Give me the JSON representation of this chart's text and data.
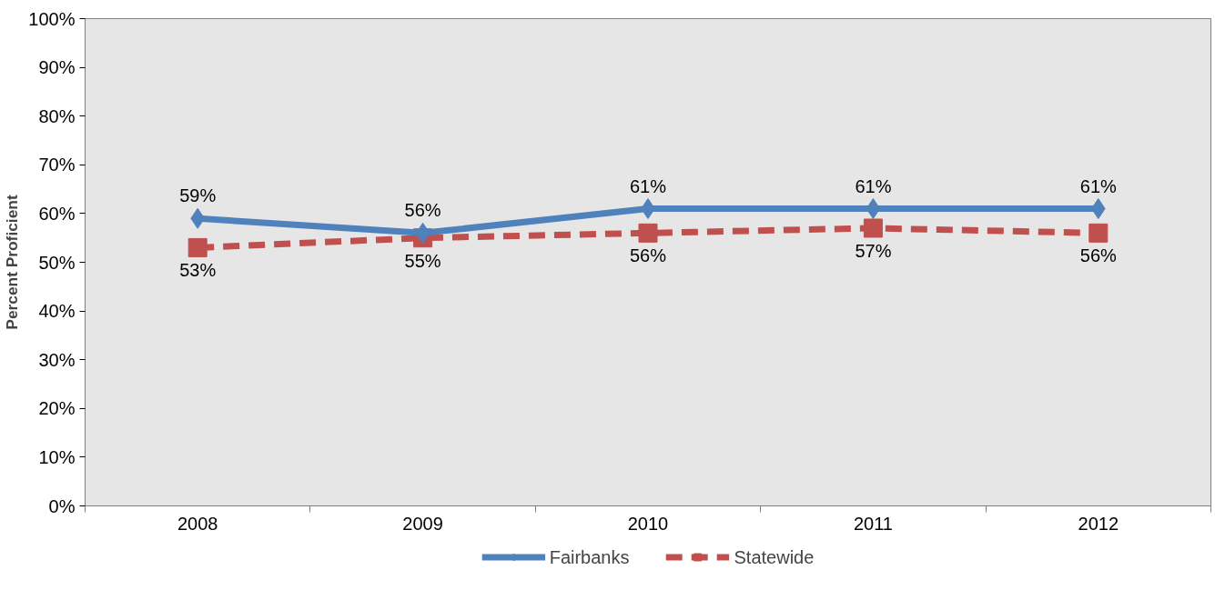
{
  "chart_data": {
    "type": "line",
    "ylabel": "Percent Proficient",
    "categories": [
      "2008",
      "2009",
      "2010",
      "2011",
      "2012"
    ],
    "series": [
      {
        "name": "Fairbanks",
        "color": "#4f81bd",
        "values": [
          59,
          56,
          61,
          61,
          61
        ],
        "value_labels": [
          "59%",
          "56%",
          "61%",
          "61%",
          "61%"
        ],
        "marker": "diamond",
        "line_style": "solid"
      },
      {
        "name": "Statewide",
        "color": "#c0504d",
        "values": [
          53,
          55,
          56,
          57,
          56
        ],
        "value_labels": [
          "53%",
          "55%",
          "56%",
          "57%",
          "56%"
        ],
        "marker": "square",
        "line_style": "dashed"
      }
    ],
    "ylim": [
      0,
      100
    ],
    "yticks": [
      {
        "value": 0,
        "label": "0%"
      },
      {
        "value": 10,
        "label": "10%"
      },
      {
        "value": 20,
        "label": "20%"
      },
      {
        "value": 30,
        "label": "30%"
      },
      {
        "value": 40,
        "label": "40%"
      },
      {
        "value": 50,
        "label": "50%"
      },
      {
        "value": 60,
        "label": "60%"
      },
      {
        "value": 70,
        "label": "70%"
      },
      {
        "value": 80,
        "label": "80%"
      },
      {
        "value": 90,
        "label": "90%"
      },
      {
        "value": 100,
        "label": "100%"
      }
    ],
    "grid": false,
    "legend": "bottom"
  }
}
